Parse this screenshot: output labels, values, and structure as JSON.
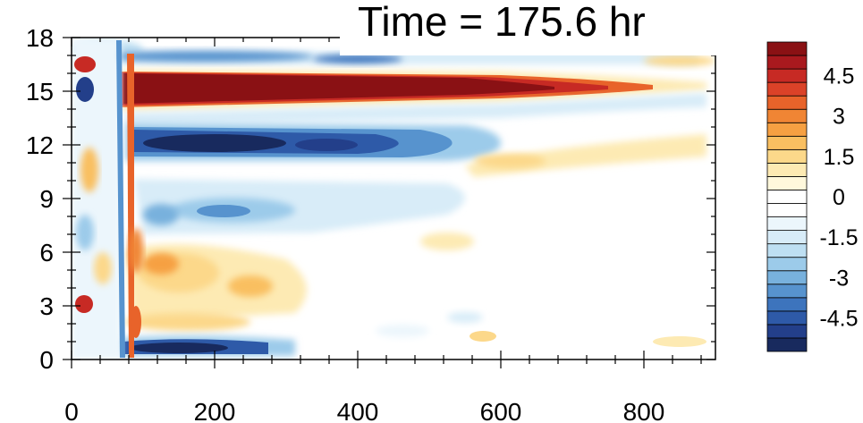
{
  "chart_data": {
    "type": "heatmap",
    "title": "Time = 175.6 hr",
    "xlabel": "",
    "ylabel": "",
    "xlim": [
      0,
      900
    ],
    "ylim": [
      0,
      18
    ],
    "x_ticks": [
      0,
      200,
      400,
      600,
      800
    ],
    "x_tick_labels": [
      "0",
      "200",
      "400",
      "600",
      "800"
    ],
    "y_ticks": [
      0,
      3,
      6,
      9,
      12,
      15,
      18
    ],
    "y_tick_labels": [
      "0",
      "3",
      "6",
      "9",
      "12",
      "15",
      "18"
    ],
    "grid": false,
    "colorbar": {
      "placement": "right",
      "levels": [
        -5.5,
        -5,
        -4.5,
        -4,
        -3.5,
        -3,
        -2.5,
        -2,
        -1.5,
        -1,
        -0.5,
        0,
        0.5,
        1,
        1.5,
        2,
        2.5,
        3,
        3.5,
        4,
        4.5,
        5,
        5.5
      ],
      "labeled_values": [
        4.5,
        3,
        1.5,
        0,
        -1.5,
        -3,
        -4.5
      ],
      "labels": [
        "4.5",
        "3",
        "1.5",
        "0",
        "-1.5",
        "-3",
        "-4.5"
      ],
      "colors": [
        "#182a5e",
        "#233f8a",
        "#2e5aa8",
        "#3d74bd",
        "#5793ce",
        "#78b1dd",
        "#9ccbea",
        "#bedff2",
        "#d8ecf8",
        "#ecf6fc",
        "#ffffff",
        "#ffffff",
        "#fff8dc",
        "#fdeab3",
        "#fcd88a",
        "#f9bf61",
        "#f6a042",
        "#f08534",
        "#e8632a",
        "#db4228",
        "#c72a24",
        "#a9191e",
        "#8a1114"
      ]
    },
    "features": [
      {
        "x": [
          80,
          720
        ],
        "y": 15.2,
        "value": 5.5,
        "note": "positive band"
      },
      {
        "x": [
          80,
          480
        ],
        "y": 12.0,
        "value": -4.5,
        "note": "negative band"
      },
      {
        "x": [
          80,
          520
        ],
        "y": 8.2,
        "value": -1.5,
        "note": "weak negative"
      },
      {
        "x": [
          80,
          320
        ],
        "y": 4.0,
        "value": 2.0,
        "note": "weak positive"
      },
      {
        "x": [
          70,
          320
        ],
        "y": 0.6,
        "value": -5.0,
        "note": "surface negative"
      },
      {
        "x": [
          80,
          900
        ],
        "y": 17.1,
        "value": -1.5,
        "note": "upper negative"
      },
      {
        "x": [
          480,
          900
        ],
        "y": 12.3,
        "value": 1.0,
        "note": "weak positive"
      }
    ]
  }
}
